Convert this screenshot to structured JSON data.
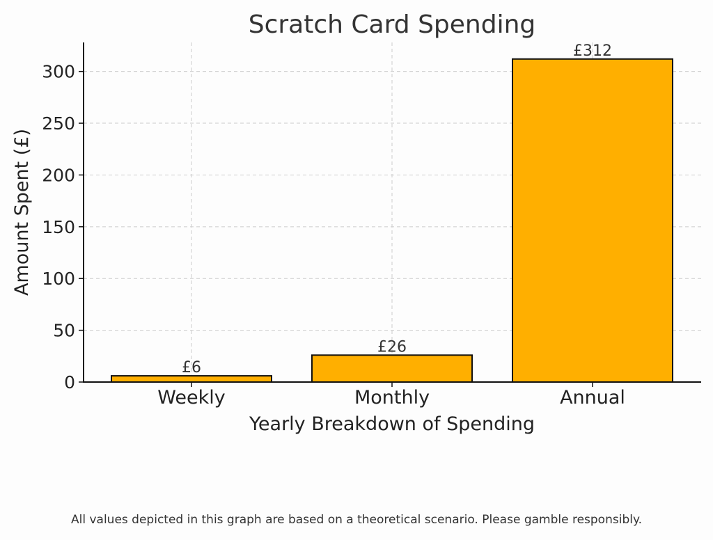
{
  "chart_data": {
    "type": "bar",
    "title": "Scratch Card Spending",
    "xlabel": "Yearly Breakdown of Spending",
    "ylabel": "Amount Spent (£)",
    "categories": [
      "Weekly",
      "Monthly",
      "Annual"
    ],
    "values": [
      6,
      26,
      312
    ],
    "data_labels": [
      "£6",
      "£26",
      "£312"
    ],
    "ylim": [
      0,
      328
    ],
    "yticks": [
      0,
      50,
      100,
      150,
      200,
      250,
      300
    ],
    "grid": true,
    "bar_color": "#FFAF00",
    "bar_edge_color": "#111111"
  },
  "footnote": "All values depicted in this graph are based on a theoretical scenario. Please gamble responsibly."
}
